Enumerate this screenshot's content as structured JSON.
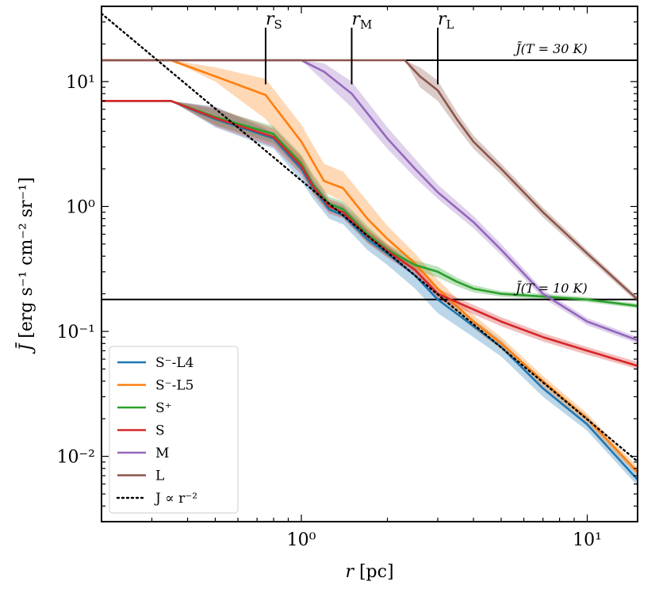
{
  "chart_data": {
    "type": "line",
    "xscale": "log",
    "yscale": "log",
    "xlim": [
      0.2,
      15
    ],
    "ylim": [
      0.003,
      40
    ],
    "xlabel": "r [pc]",
    "ylabel": "J̄ [erg s⁻¹ cm⁻² sr⁻¹]",
    "x_tick_labels": [
      {
        "value": 1,
        "label": "10⁰"
      },
      {
        "value": 10,
        "label": "10¹"
      }
    ],
    "y_tick_labels": [
      {
        "value": 0.01,
        "label": "10⁻²"
      },
      {
        "value": 0.1,
        "label": "10⁻¹"
      },
      {
        "value": 1,
        "label": "10⁰"
      },
      {
        "value": 10,
        "label": "10¹"
      }
    ],
    "hlines": [
      {
        "y": 14.8,
        "label": "J̄(T = 30 K)",
        "label_x": 7.5
      },
      {
        "y": 0.18,
        "label": "J̄(T = 10 K)",
        "label_x": 7.5
      }
    ],
    "vmarkers": [
      {
        "x": 0.75,
        "label": "rS",
        "y_from": 9.5,
        "y_to": 27
      },
      {
        "x": 1.5,
        "label": "rM",
        "y_from": 9.5,
        "y_to": 27
      },
      {
        "x": 3.0,
        "label": "rL",
        "y_from": 9.5,
        "y_to": 27
      }
    ],
    "series": [
      {
        "name": "S⁻-L4",
        "color": "#1f77b4",
        "x": [
          0.2,
          0.35,
          0.5,
          0.8,
          1.0,
          1.1,
          1.25,
          1.4,
          1.7,
          2.0,
          2.5,
          3.0,
          4.0,
          5.0,
          7.0,
          10.0,
          15.0
        ],
        "y": [
          7.0,
          7.0,
          5.0,
          3.5,
          2.0,
          1.4,
          0.95,
          0.85,
          0.55,
          0.42,
          0.28,
          0.18,
          0.11,
          0.075,
          0.035,
          0.018,
          0.0065
        ],
        "band_lo": [
          7.0,
          7.0,
          4.3,
          2.9,
          1.6,
          1.15,
          0.8,
          0.72,
          0.45,
          0.34,
          0.22,
          0.14,
          0.09,
          0.063,
          0.03,
          0.016,
          0.0058
        ],
        "band_hi": [
          7.0,
          7.0,
          6.3,
          3.9,
          2.3,
          1.6,
          1.1,
          1.0,
          0.64,
          0.48,
          0.32,
          0.21,
          0.125,
          0.085,
          0.04,
          0.021,
          0.0075
        ]
      },
      {
        "name": "S⁻-L5",
        "color": "#ff7f0e",
        "x": [
          0.2,
          0.35,
          0.5,
          0.75,
          1.0,
          1.2,
          1.4,
          1.7,
          2.0,
          2.5,
          3.0,
          4.0,
          5.0,
          7.0,
          10.0,
          15.0
        ],
        "y": [
          14.8,
          14.8,
          11.0,
          7.8,
          3.3,
          1.6,
          1.4,
          0.8,
          0.55,
          0.35,
          0.22,
          0.12,
          0.08,
          0.04,
          0.02,
          0.0075
        ],
        "band_lo": [
          14.8,
          14.8,
          10.0,
          5.0,
          2.2,
          1.3,
          1.1,
          0.6,
          0.45,
          0.3,
          0.19,
          0.105,
          0.072,
          0.036,
          0.018,
          0.007
        ],
        "band_hi": [
          14.8,
          14.8,
          13.0,
          10.5,
          4.5,
          2.2,
          1.9,
          1.1,
          0.7,
          0.42,
          0.26,
          0.135,
          0.09,
          0.044,
          0.022,
          0.0082
        ]
      },
      {
        "name": "S⁺",
        "color": "#2ca02c",
        "x": [
          0.2,
          0.35,
          0.5,
          0.8,
          1.0,
          1.1,
          1.25,
          1.4,
          1.7,
          2.0,
          2.5,
          3.0,
          3.5,
          4.0,
          5.0,
          7.0,
          10.0,
          15.0
        ],
        "y": [
          7.0,
          7.0,
          5.2,
          3.8,
          2.2,
          1.5,
          1.05,
          0.95,
          0.6,
          0.45,
          0.34,
          0.3,
          0.25,
          0.22,
          0.2,
          0.19,
          0.18,
          0.16
        ],
        "band_lo": [
          7.0,
          7.0,
          4.5,
          3.2,
          1.9,
          1.3,
          0.92,
          0.83,
          0.52,
          0.4,
          0.31,
          0.27,
          0.23,
          0.205,
          0.19,
          0.18,
          0.172,
          0.153
        ],
        "band_hi": [
          7.0,
          7.0,
          6.0,
          4.4,
          2.6,
          1.8,
          1.2,
          1.1,
          0.7,
          0.5,
          0.37,
          0.33,
          0.27,
          0.235,
          0.21,
          0.2,
          0.188,
          0.167
        ]
      },
      {
        "name": "S",
        "color": "#d62728",
        "x": [
          0.2,
          0.35,
          0.5,
          0.8,
          1.0,
          1.1,
          1.25,
          1.4,
          1.7,
          2.0,
          2.5,
          3.0,
          4.0,
          5.0,
          7.0,
          10.0,
          15.0
        ],
        "y": [
          7.0,
          7.0,
          5.1,
          3.6,
          2.1,
          1.45,
          1.0,
          0.9,
          0.58,
          0.44,
          0.31,
          0.2,
          0.15,
          0.12,
          0.09,
          0.07,
          0.053
        ],
        "band_lo": [
          7.0,
          7.0,
          4.4,
          3.0,
          1.8,
          1.25,
          0.88,
          0.8,
          0.51,
          0.39,
          0.28,
          0.18,
          0.137,
          0.11,
          0.083,
          0.065,
          0.05
        ],
        "band_hi": [
          7.0,
          7.0,
          6.2,
          4.2,
          2.5,
          1.7,
          1.15,
          1.05,
          0.66,
          0.49,
          0.34,
          0.22,
          0.163,
          0.13,
          0.097,
          0.075,
          0.057
        ]
      },
      {
        "name": "M",
        "color": "#9467bd",
        "x": [
          0.2,
          1.0,
          1.2,
          1.5,
          2.0,
          2.5,
          3.0,
          4.0,
          5.0,
          7.0,
          10.0,
          15.0
        ],
        "y": [
          14.8,
          14.8,
          12.0,
          8.0,
          3.5,
          2.0,
          1.3,
          0.75,
          0.45,
          0.2,
          0.12,
          0.085
        ],
        "band_lo": [
          14.8,
          14.8,
          10.0,
          6.2,
          2.9,
          1.7,
          1.15,
          0.67,
          0.41,
          0.185,
          0.112,
          0.08
        ],
        "band_hi": [
          14.8,
          14.8,
          14.0,
          10.0,
          4.3,
          2.4,
          1.5,
          0.84,
          0.5,
          0.215,
          0.128,
          0.09
        ]
      },
      {
        "name": "L",
        "color": "#8c564b",
        "x": [
          0.2,
          2.3,
          2.6,
          3.0,
          3.5,
          4.0,
          5.0,
          7.0,
          10.0,
          15.0
        ],
        "y": [
          14.8,
          14.8,
          11.0,
          8.5,
          5.0,
          3.3,
          2.0,
          0.9,
          0.42,
          0.18
        ],
        "band_lo": [
          14.8,
          14.8,
          9.0,
          7.0,
          4.3,
          2.9,
          1.8,
          0.82,
          0.39,
          0.17
        ],
        "band_hi": [
          14.8,
          14.8,
          13.0,
          10.2,
          5.7,
          3.7,
          2.2,
          0.98,
          0.45,
          0.19
        ]
      }
    ],
    "reference": {
      "name": "J ∝ r⁻²",
      "style": "dotted",
      "color": "#000000",
      "x": [
        0.2,
        15.0
      ],
      "y": [
        35.0,
        0.0091
      ]
    },
    "legend": {
      "location": "lower-left",
      "entries": [
        "S⁻-L4",
        "S⁻-L5",
        "S⁺",
        "S",
        "M",
        "L",
        "J ∝ r⁻²"
      ]
    }
  }
}
